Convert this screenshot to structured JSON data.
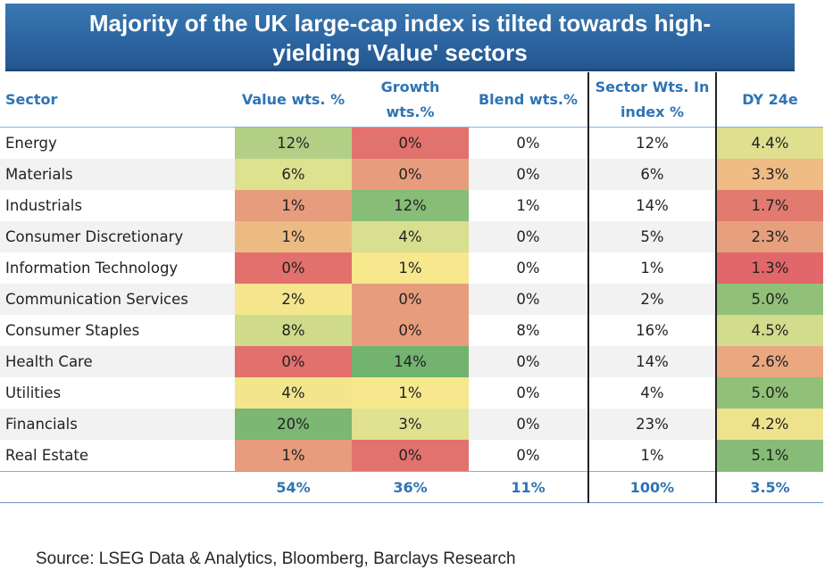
{
  "title": {
    "line1": "Majority of the UK large-cap index is tilted towards high-",
    "line2": "yielding 'Value' sectors"
  },
  "chart_data": {
    "type": "table",
    "columns": [
      "Sector",
      "Value wts. %",
      "Growth wts.%",
      "Blend wts.%",
      "Sector Wts. In index %",
      "DY 24e"
    ],
    "rows": [
      {
        "sector": "Energy",
        "value": "12%",
        "growth": "0%",
        "blend": "0%",
        "index": "12%",
        "dy": "4.4%",
        "colors": {
          "value": "#b3cf85",
          "growth": "#e2726d",
          "dy": "#dfe08f"
        }
      },
      {
        "sector": "Materials",
        "value": "6%",
        "growth": "0%",
        "blend": "0%",
        "index": "6%",
        "dy": "3.3%",
        "colors": {
          "value": "#dde28f",
          "growth": "#e79d7d",
          "dy": "#eebc84"
        }
      },
      {
        "sector": "Industrials",
        "value": "1%",
        "growth": "12%",
        "blend": "1%",
        "index": "14%",
        "dy": "1.7%",
        "colors": {
          "value": "#e69c7d",
          "growth": "#88bd77",
          "dy": "#e27a6f"
        }
      },
      {
        "sector": "Consumer Discretionary",
        "value": "1%",
        "growth": "4%",
        "blend": "0%",
        "index": "5%",
        "dy": "2.3%",
        "colors": {
          "value": "#ecbb84",
          "growth": "#d8df8e",
          "dy": "#e7a07e"
        }
      },
      {
        "sector": "Information Technology",
        "value": "0%",
        "growth": "1%",
        "blend": "0%",
        "index": "1%",
        "dy": "1.3%",
        "colors": {
          "value": "#e2706c",
          "growth": "#f7e88e",
          "dy": "#e1676a"
        }
      },
      {
        "sector": "Communication Services",
        "value": "2%",
        "growth": "0%",
        "blend": "0%",
        "index": "2%",
        "dy": "5.0%",
        "colors": {
          "value": "#f5e68e",
          "growth": "#e79d7d",
          "dy": "#91c179"
        }
      },
      {
        "sector": "Consumer Staples",
        "value": "8%",
        "growth": "0%",
        "blend": "8%",
        "index": "16%",
        "dy": "4.5%",
        "colors": {
          "value": "#cfdb8a",
          "growth": "#e79d7d",
          "dy": "#d2dc8c"
        }
      },
      {
        "sector": "Health Care",
        "value": "0%",
        "growth": "14%",
        "blend": "0%",
        "index": "14%",
        "dy": "2.6%",
        "colors": {
          "value": "#e2706c",
          "growth": "#72b36f",
          "dy": "#eaa780"
        }
      },
      {
        "sector": "Utilities",
        "value": "4%",
        "growth": "1%",
        "blend": "0%",
        "index": "4%",
        "dy": "5.0%",
        "colors": {
          "value": "#f2e58c",
          "growth": "#f7e88e",
          "dy": "#91c179"
        }
      },
      {
        "sector": "Financials",
        "value": "20%",
        "growth": "3%",
        "blend": "0%",
        "index": "23%",
        "dy": "4.2%",
        "colors": {
          "value": "#7cb773",
          "growth": "#e0e290",
          "dy": "#eee38c"
        }
      },
      {
        "sector": "Real Estate",
        "value": "1%",
        "growth": "0%",
        "blend": "0%",
        "index": "1%",
        "dy": "5.1%",
        "colors": {
          "value": "#e69c7d",
          "growth": "#e2726d",
          "dy": "#86bc77"
        }
      }
    ],
    "totals": {
      "value": "54%",
      "growth": "36%",
      "blend": "11%",
      "index": "100%",
      "dy": "3.5%"
    }
  },
  "source": "Source: LSEG Data & Analytics, Bloomberg, Barclays Research"
}
